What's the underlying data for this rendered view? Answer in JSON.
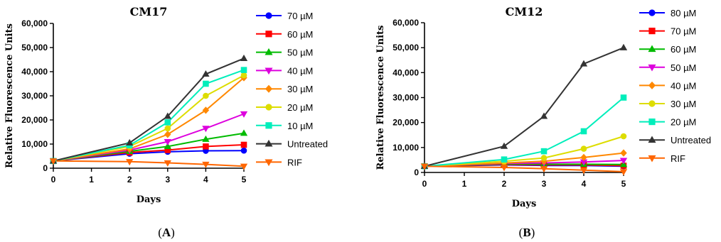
{
  "chart_data": [
    {
      "type": "line",
      "panel_label": "A",
      "title": "CM17",
      "xlabel": "Days",
      "ylabel": "Relative Fluorescence Units",
      "xlim": [
        0,
        5
      ],
      "ylim": [
        0,
        60000
      ],
      "x_ticks": [
        "0",
        "1",
        "2",
        "3",
        "4",
        "5"
      ],
      "y_ticks": [
        "0",
        "10,000",
        "20,000",
        "30,000",
        "40,000",
        "50,000",
        "60,000"
      ],
      "legend_position": "right",
      "x": [
        0,
        2,
        3,
        4,
        5
      ],
      "series": [
        {
          "name": "70 µM",
          "color": "#0000ff",
          "marker": "circle",
          "values": [
            3000,
            6000,
            6800,
            7200,
            7300
          ]
        },
        {
          "name": "60 µM",
          "color": "#ff0000",
          "marker": "square",
          "values": [
            3000,
            6500,
            7500,
            9000,
            9700
          ]
        },
        {
          "name": "50 µM",
          "color": "#00bb00",
          "marker": "triangle-up",
          "values": [
            3000,
            7000,
            9000,
            12000,
            14500
          ]
        },
        {
          "name": "40 µM",
          "color": "#dd00dd",
          "marker": "triangle-down",
          "values": [
            3000,
            7500,
            11000,
            16500,
            22500
          ]
        },
        {
          "name": "30 µM",
          "color": "#ff8800",
          "marker": "diamond",
          "values": [
            3000,
            8000,
            14000,
            24000,
            37500
          ]
        },
        {
          "name": "20 µM",
          "color": "#dddd00",
          "marker": "circle",
          "values": [
            3000,
            9000,
            16500,
            30000,
            38500
          ]
        },
        {
          "name": "10 µM",
          "color": "#00eebb",
          "marker": "square",
          "values": [
            3000,
            9500,
            19000,
            35000,
            40700
          ]
        },
        {
          "name": "Untreated",
          "color": "#333333",
          "marker": "triangle-up",
          "values": [
            3000,
            10500,
            21500,
            39000,
            45500
          ]
        },
        {
          "name": "RIF",
          "color": "#ff6600",
          "marker": "triangle-down",
          "values": [
            3000,
            2700,
            2200,
            1600,
            800
          ]
        }
      ]
    },
    {
      "type": "line",
      "panel_label": "B",
      "title": "CM12",
      "xlabel": "Days",
      "ylabel": "Relative Fluorescence Units",
      "xlim": [
        0,
        5
      ],
      "ylim": [
        0,
        60000
      ],
      "x_ticks": [
        "0",
        "1",
        "2",
        "3",
        "4",
        "5"
      ],
      "y_ticks": [
        "0",
        "10,000",
        "20,000",
        "30,000",
        "40,000",
        "50,000",
        "60,000"
      ],
      "legend_position": "right",
      "x": [
        0,
        2,
        3,
        4,
        5
      ],
      "series": [
        {
          "name": "80 µM",
          "color": "#0000ff",
          "marker": "circle",
          "values": [
            2500,
            3000,
            2800,
            2800,
            2500
          ]
        },
        {
          "name": "70 µM",
          "color": "#ff0000",
          "marker": "square",
          "values": [
            2500,
            3200,
            3000,
            3000,
            2700
          ]
        },
        {
          "name": "60 µM",
          "color": "#00bb00",
          "marker": "triangle-up",
          "values": [
            2500,
            3400,
            3300,
            3300,
            3200
          ]
        },
        {
          "name": "50 µM",
          "color": "#dd00dd",
          "marker": "triangle-down",
          "values": [
            2500,
            3600,
            3800,
            4200,
            4800
          ]
        },
        {
          "name": "40 µM",
          "color": "#ff8800",
          "marker": "diamond",
          "values": [
            2500,
            3800,
            4500,
            6000,
            7800
          ]
        },
        {
          "name": "30 µM",
          "color": "#dddd00",
          "marker": "circle",
          "values": [
            2500,
            4500,
            5800,
            9500,
            14500
          ]
        },
        {
          "name": "20 µM",
          "color": "#00eebb",
          "marker": "square",
          "values": [
            2500,
            5200,
            8500,
            16500,
            30000
          ]
        },
        {
          "name": "Untreated",
          "color": "#333333",
          "marker": "triangle-up",
          "values": [
            2500,
            10500,
            22500,
            43500,
            50000
          ]
        },
        {
          "name": "RIF",
          "color": "#ff6600",
          "marker": "triangle-down",
          "values": [
            2500,
            2000,
            1500,
            900,
            300
          ]
        }
      ]
    }
  ]
}
